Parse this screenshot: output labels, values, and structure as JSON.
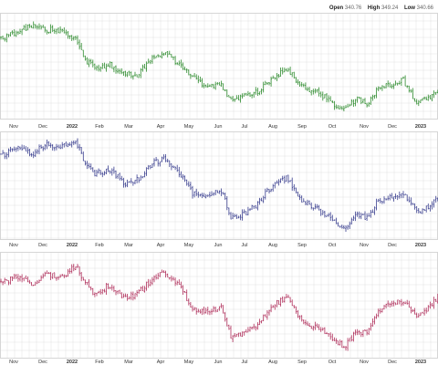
{
  "header": {
    "open_label": "Open",
    "open_value": "340.76",
    "high_label": "High",
    "high_value": "349.24",
    "low_label": "Low",
    "low_value": "340.66"
  },
  "colors": {
    "background": "#ffffff",
    "grid": "#d9d9d9",
    "panel_border": "#bbbbbb",
    "series": [
      "#2e8b2e",
      "#3a3f8f",
      "#b0305c"
    ]
  },
  "chart_data": [
    {
      "type": "ohlc",
      "panel": 1,
      "color": "#2e8b2e",
      "grid": true,
      "x_ticks": [
        "Nov",
        "Dec",
        "2022",
        "Feb",
        "Mar",
        "Apr",
        "May",
        "Jun",
        "Jul",
        "Aug",
        "Sep",
        "Oct",
        "Nov",
        "Dec",
        "2023"
      ],
      "bold_ticks": [
        "2022",
        "2023"
      ],
      "y_scale": "relative (no price axis shown)",
      "path_points": [
        [
          "2021-10-20",
          0.78
        ],
        [
          "2021-11-05",
          0.85
        ],
        [
          "2021-11-20",
          0.92
        ],
        [
          "2021-12-05",
          0.88
        ],
        [
          "2021-12-20",
          0.86
        ],
        [
          "2022-01-05",
          0.78
        ],
        [
          "2022-01-15",
          0.55
        ],
        [
          "2022-01-28",
          0.45
        ],
        [
          "2022-02-10",
          0.5
        ],
        [
          "2022-02-25",
          0.4
        ],
        [
          "2022-03-10",
          0.38
        ],
        [
          "2022-03-25",
          0.58
        ],
        [
          "2022-04-05",
          0.62
        ],
        [
          "2022-04-20",
          0.5
        ],
        [
          "2022-05-05",
          0.35
        ],
        [
          "2022-05-20",
          0.25
        ],
        [
          "2022-06-05",
          0.27
        ],
        [
          "2022-06-16",
          0.08
        ],
        [
          "2022-07-01",
          0.14
        ],
        [
          "2022-07-15",
          0.2
        ],
        [
          "2022-08-01",
          0.34
        ],
        [
          "2022-08-16",
          0.45
        ],
        [
          "2022-09-01",
          0.25
        ],
        [
          "2022-09-15",
          0.2
        ],
        [
          "2022-09-30",
          0.08
        ],
        [
          "2022-10-13",
          0.0
        ],
        [
          "2022-10-25",
          0.12
        ],
        [
          "2022-11-05",
          0.06
        ],
        [
          "2022-11-15",
          0.22
        ],
        [
          "2022-12-01",
          0.28
        ],
        [
          "2022-12-13",
          0.32
        ],
        [
          "2022-12-28",
          0.05
        ],
        [
          "2023-01-10",
          0.14
        ],
        [
          "2023-01-25",
          0.25
        ]
      ]
    },
    {
      "type": "ohlc",
      "panel": 2,
      "color": "#3a3f8f",
      "grid": true,
      "x_ticks": [
        "Nov",
        "Dec",
        "2022",
        "Feb",
        "Mar",
        "Apr",
        "May",
        "Jun",
        "Jul",
        "Aug",
        "Sep",
        "Oct",
        "Nov",
        "Dec",
        "2023"
      ],
      "bold_ticks": [
        "2022",
        "2023"
      ],
      "y_scale": "relative (no price axis shown)",
      "path_points": [
        [
          "2021-10-20",
          0.8
        ],
        [
          "2021-11-05",
          0.88
        ],
        [
          "2021-11-20",
          0.82
        ],
        [
          "2021-12-05",
          0.92
        ],
        [
          "2021-12-20",
          0.88
        ],
        [
          "2022-01-05",
          0.96
        ],
        [
          "2022-01-15",
          0.72
        ],
        [
          "2022-01-28",
          0.6
        ],
        [
          "2022-02-10",
          0.66
        ],
        [
          "2022-02-25",
          0.5
        ],
        [
          "2022-03-10",
          0.54
        ],
        [
          "2022-03-25",
          0.72
        ],
        [
          "2022-04-05",
          0.78
        ],
        [
          "2022-04-20",
          0.62
        ],
        [
          "2022-05-05",
          0.4
        ],
        [
          "2022-05-20",
          0.36
        ],
        [
          "2022-06-05",
          0.42
        ],
        [
          "2022-06-16",
          0.12
        ],
        [
          "2022-07-01",
          0.18
        ],
        [
          "2022-07-15",
          0.28
        ],
        [
          "2022-08-01",
          0.48
        ],
        [
          "2022-08-16",
          0.56
        ],
        [
          "2022-09-01",
          0.3
        ],
        [
          "2022-09-15",
          0.24
        ],
        [
          "2022-09-30",
          0.12
        ],
        [
          "2022-10-13",
          0.02
        ],
        [
          "2022-10-25",
          0.18
        ],
        [
          "2022-11-05",
          0.12
        ],
        [
          "2022-11-15",
          0.3
        ],
        [
          "2022-12-01",
          0.36
        ],
        [
          "2022-12-13",
          0.4
        ],
        [
          "2022-12-28",
          0.18
        ],
        [
          "2023-01-10",
          0.26
        ],
        [
          "2023-01-25",
          0.38
        ]
      ]
    },
    {
      "type": "ohlc",
      "panel": 3,
      "color": "#b0305c",
      "grid": true,
      "x_ticks": [
        "Nov",
        "Dec",
        "2022",
        "Feb",
        "Mar",
        "Apr",
        "May",
        "Jun",
        "Jul",
        "Aug",
        "Sep",
        "Oct",
        "Nov",
        "Dec",
        "2023"
      ],
      "bold_ticks": [
        "2022",
        "2023"
      ],
      "y_scale": "relative (no price axis shown)",
      "path_points": [
        [
          "2021-10-20",
          0.72
        ],
        [
          "2021-11-05",
          0.78
        ],
        [
          "2021-11-20",
          0.7
        ],
        [
          "2021-12-05",
          0.82
        ],
        [
          "2021-12-20",
          0.76
        ],
        [
          "2022-01-05",
          0.92
        ],
        [
          "2022-01-15",
          0.74
        ],
        [
          "2022-01-28",
          0.58
        ],
        [
          "2022-02-10",
          0.7
        ],
        [
          "2022-02-25",
          0.55
        ],
        [
          "2022-03-10",
          0.6
        ],
        [
          "2022-03-25",
          0.78
        ],
        [
          "2022-04-05",
          0.82
        ],
        [
          "2022-04-20",
          0.7
        ],
        [
          "2022-05-05",
          0.44
        ],
        [
          "2022-05-20",
          0.4
        ],
        [
          "2022-06-05",
          0.46
        ],
        [
          "2022-06-16",
          0.1
        ],
        [
          "2022-07-01",
          0.18
        ],
        [
          "2022-07-15",
          0.26
        ],
        [
          "2022-08-01",
          0.48
        ],
        [
          "2022-08-16",
          0.56
        ],
        [
          "2022-09-01",
          0.28
        ],
        [
          "2022-09-15",
          0.24
        ],
        [
          "2022-09-30",
          0.12
        ],
        [
          "2022-10-13",
          0.02
        ],
        [
          "2022-10-25",
          0.2
        ],
        [
          "2022-11-05",
          0.16
        ],
        [
          "2022-11-15",
          0.4
        ],
        [
          "2022-12-01",
          0.5
        ],
        [
          "2022-12-13",
          0.52
        ],
        [
          "2022-12-28",
          0.36
        ],
        [
          "2023-01-10",
          0.46
        ],
        [
          "2023-01-25",
          0.6
        ]
      ]
    }
  ]
}
